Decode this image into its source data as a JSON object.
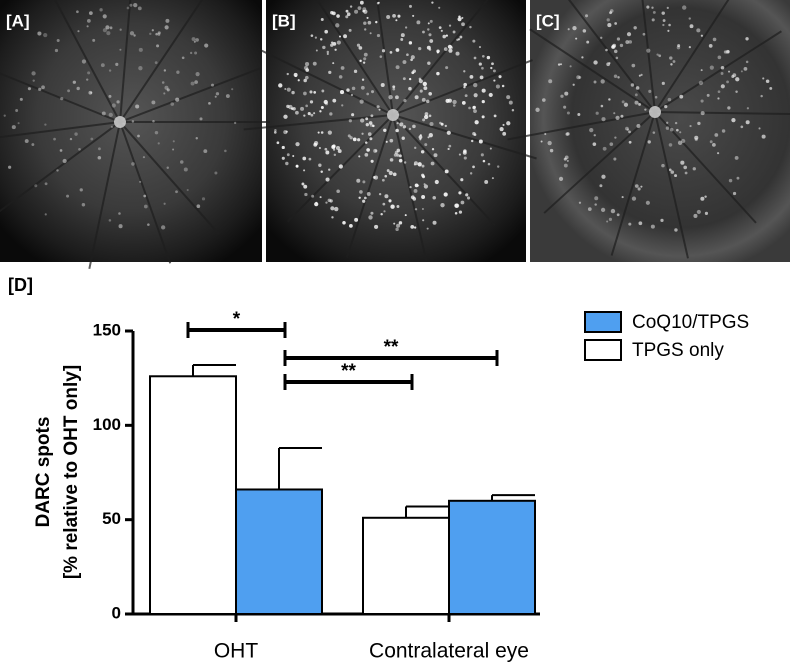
{
  "figure": {
    "panels": [
      "[A]",
      "[B]",
      "[C]"
    ],
    "chart_label": "[D]"
  },
  "chart_data": {
    "type": "bar",
    "ylabel": [
      "DARC spots",
      "[% relative to OHT only]"
    ],
    "categories": [
      "OHT",
      "Contralateral eye"
    ],
    "series": [
      {
        "name": "CoQ10/TPGS",
        "color": "#4f9ff0",
        "values": [
          66,
          60
        ],
        "errors": [
          22,
          3
        ]
      },
      {
        "name": "TPGS only",
        "color": "#ffffff",
        "values": [
          126,
          51
        ],
        "errors": [
          6,
          6
        ]
      }
    ],
    "ylim": [
      0,
      150
    ],
    "yticks": [
      0,
      50,
      100,
      150
    ],
    "annotations": [
      "*",
      "**",
      "**"
    ]
  }
}
